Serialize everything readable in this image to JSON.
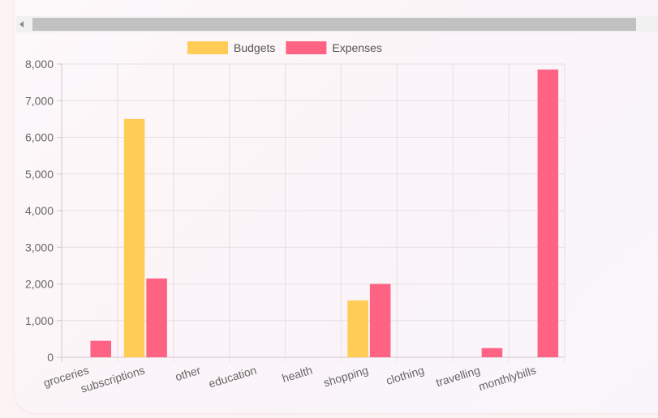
{
  "chart_data": {
    "type": "bar",
    "categories": [
      "groceries",
      "subscriptions",
      "other",
      "education",
      "health",
      "shopping",
      "clothing",
      "travelling",
      "monthlybills"
    ],
    "series": [
      {
        "name": "Budgets",
        "color": "#ffcd56",
        "values": [
          0,
          6500,
          0,
          0,
          0,
          1550,
          0,
          0,
          0
        ]
      },
      {
        "name": "Expenses",
        "color": "#ff6384",
        "values": [
          450,
          2150,
          0,
          0,
          0,
          2000,
          0,
          250,
          7850
        ]
      }
    ],
    "title": "",
    "xlabel": "",
    "ylabel": "",
    "ylim": [
      0,
      8000
    ],
    "yticks": [
      "0",
      "1,000",
      "2,000",
      "3,000",
      "4,000",
      "5,000",
      "6,000",
      "7,000",
      "8,000"
    ],
    "grid": true,
    "legend_position": "top"
  }
}
